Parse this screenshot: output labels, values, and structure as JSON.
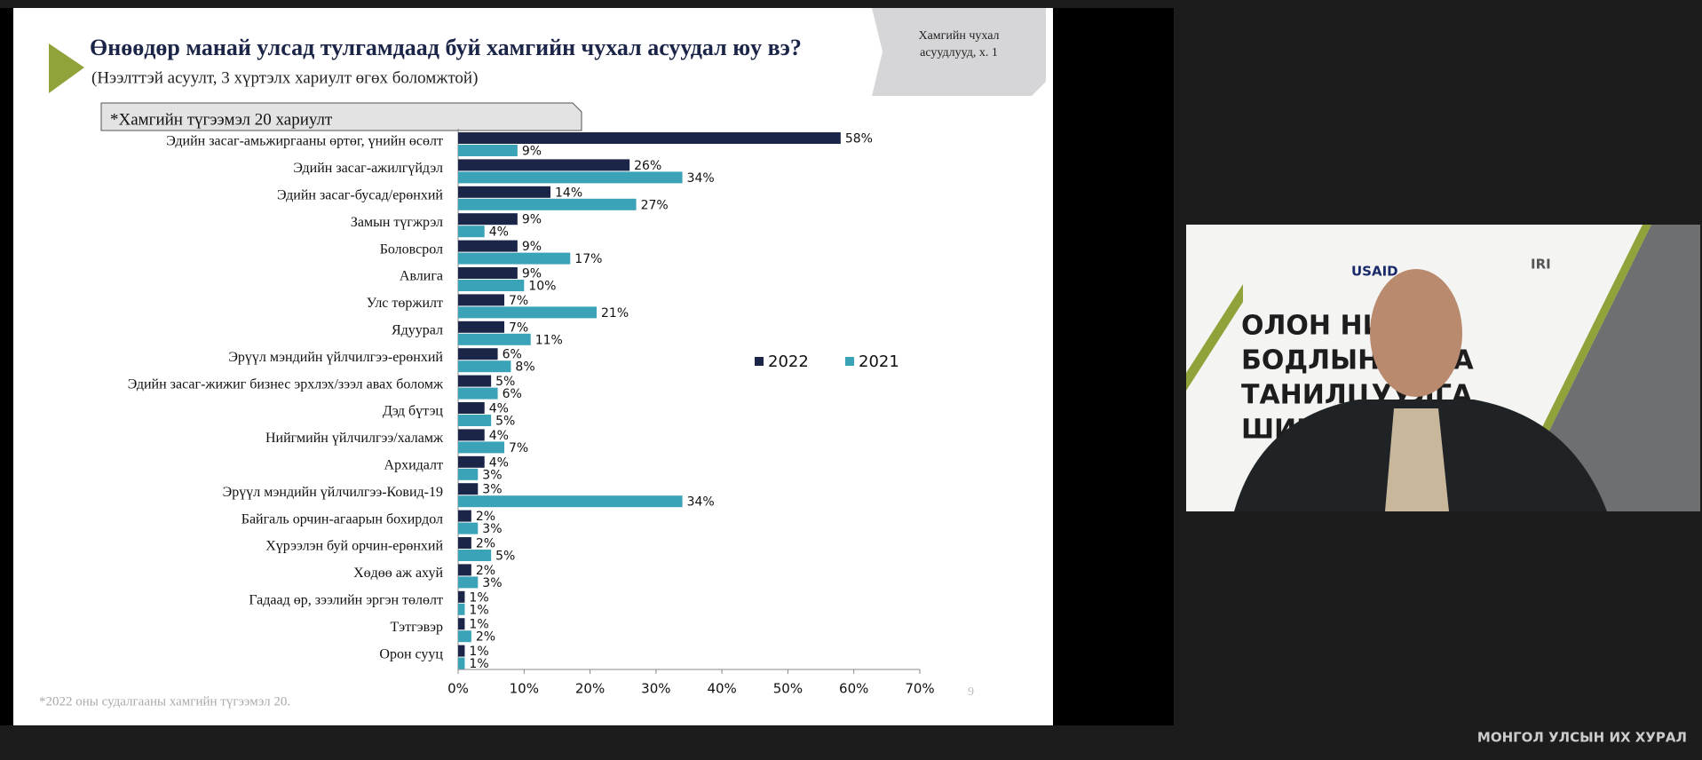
{
  "chart_data": {
    "type": "bar",
    "title": "Өнөөдөр манай улсад тулгамдаад буй хамгийн чухал асуудал юу вэ?",
    "subtitle": "(Нээлттэй асуулт, 3 хүртэлх хариулт өгөх боломжтой)",
    "note": "*Хамгийн түгээмэл 20 хариулт",
    "footnote": "*2022 оны судалгааны хамгийн түгээмэл 20.",
    "categories": [
      "Эдийн засаг-амьжиргааны өртөг, үнийн өсөлт",
      "Эдийн засаг-ажилгүйдэл",
      "Эдийн засаг-бусад/ерөнхий",
      "Замын түгжрэл",
      "Боловсрол",
      "Авлига",
      "Улс төржилт",
      "Ядуурал",
      "Эрүүл мэндийн үйлчилгээ-ерөнхий",
      "Эдийн засаг-жижиг бизнес эрхлэх/зээл авах боломж",
      "Дэд бүтэц",
      "Нийгмийн үйлчилгээ/халамж",
      "Архидалт",
      "Эрүүл мэндийн үйлчилгээ-Ковид-19",
      "Байгаль орчин-агаарын бохирдол",
      "Хүрээлэн буй орчин-ерөнхий",
      "Хөдөө аж ахуй",
      "Гадаад өр, зээлийн эргэн төлөлт",
      "Тэтгэвэр",
      "Орон сууц"
    ],
    "series": [
      {
        "name": "2022",
        "color": "#1b2547",
        "values": [
          58,
          26,
          14,
          9,
          9,
          9,
          7,
          7,
          6,
          5,
          4,
          4,
          4,
          3,
          2,
          2,
          2,
          1,
          1,
          1
        ],
        "value_labels": [
          "58%",
          "26%",
          "14%",
          "9%",
          "9%",
          "9%",
          "7%",
          "7%",
          "6%",
          "5%",
          "4%",
          "4%",
          "4%",
          "3%",
          "2%",
          "2%",
          "2%",
          "1%",
          "1%",
          "1%"
        ]
      },
      {
        "name": "2021",
        "color": "#3ba3b7",
        "values": [
          9,
          34,
          27,
          4,
          17,
          10,
          21,
          11,
          8,
          6,
          5,
          7,
          3,
          34,
          3,
          5,
          3,
          1,
          2,
          1
        ],
        "value_labels": [
          "9%",
          "34%",
          "27%",
          "4%",
          "17%",
          "10%",
          "21%",
          "11%",
          "8%",
          "6%",
          "5%",
          "7%",
          "3%",
          "34%",
          "3%",
          "5%",
          "3%",
          "1%",
          "2%",
          "1%"
        ]
      }
    ],
    "xlim": [
      0,
      70
    ],
    "xticks": [
      {
        "value": 0,
        "label": "0%"
      },
      {
        "value": 10,
        "label": "10%"
      },
      {
        "value": 20,
        "label": "20%"
      },
      {
        "value": 30,
        "label": "30%"
      },
      {
        "value": 40,
        "label": "40%"
      },
      {
        "value": 50,
        "label": "50%"
      },
      {
        "value": 60,
        "label": "60%"
      },
      {
        "value": 70,
        "label": "70%"
      }
    ]
  },
  "slide": {
    "tag": [
      "Хамгийн чухал",
      "асуудлууд, х. 1"
    ],
    "page": "9"
  },
  "video": {
    "headline": [
      "ОЛОН НИЙТИ",
      "БОДЛЫН СУДА",
      "ТАНИЛЦУУЛГА",
      "ШИНЖИЛГЭЭ"
    ],
    "logos": [
      "USAID",
      "IRI"
    ]
  },
  "footer": "МОНГОЛ УЛСЫН ИХ ХУРАЛ"
}
